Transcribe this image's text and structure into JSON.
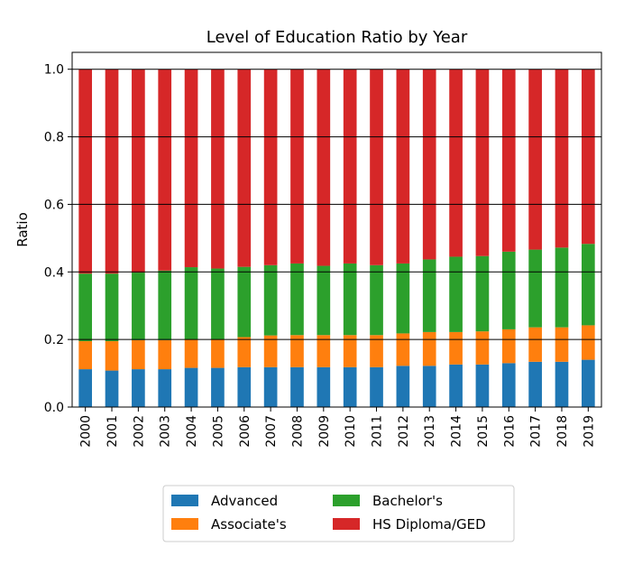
{
  "chart_data": {
    "type": "bar",
    "stacked": true,
    "title": "Level of Education Ratio by Year",
    "xlabel": "",
    "ylabel": "Ratio",
    "ylim": [
      0,
      1.05
    ],
    "yticks": [
      "0.0",
      "0.2",
      "0.4",
      "0.6",
      "0.8",
      "1.0"
    ],
    "grid": "horizontal",
    "legend_position": "bottom-center",
    "categories": [
      "2000",
      "2001",
      "2002",
      "2003",
      "2004",
      "2005",
      "2006",
      "2007",
      "2008",
      "2009",
      "2010",
      "2011",
      "2012",
      "2013",
      "2014",
      "2015",
      "2016",
      "2017",
      "2018",
      "2019"
    ],
    "series": [
      {
        "name": "Advanced",
        "color": "#1f77b4",
        "values": [
          0.112,
          0.108,
          0.112,
          0.112,
          0.116,
          0.116,
          0.118,
          0.118,
          0.118,
          0.118,
          0.118,
          0.118,
          0.122,
          0.122,
          0.126,
          0.126,
          0.13,
          0.134,
          0.134,
          0.14
        ]
      },
      {
        "name": "Associate's",
        "color": "#ff7f0e",
        "values": [
          0.083,
          0.087,
          0.086,
          0.086,
          0.084,
          0.084,
          0.089,
          0.094,
          0.095,
          0.095,
          0.095,
          0.095,
          0.096,
          0.1,
          0.096,
          0.098,
          0.1,
          0.102,
          0.102,
          0.102
        ]
      },
      {
        "name": "Bachelor's",
        "color": "#2ca02c",
        "values": [
          0.2,
          0.2,
          0.2,
          0.206,
          0.214,
          0.21,
          0.208,
          0.208,
          0.212,
          0.205,
          0.212,
          0.207,
          0.207,
          0.215,
          0.223,
          0.223,
          0.23,
          0.23,
          0.236,
          0.241
        ]
      },
      {
        "name": "HS Diploma/GED",
        "color": "#d62728",
        "values": [
          0.605,
          0.605,
          0.602,
          0.596,
          0.586,
          0.59,
          0.585,
          0.58,
          0.575,
          0.582,
          0.575,
          0.58,
          0.575,
          0.563,
          0.555,
          0.553,
          0.54,
          0.534,
          0.528,
          0.517
        ]
      }
    ]
  }
}
